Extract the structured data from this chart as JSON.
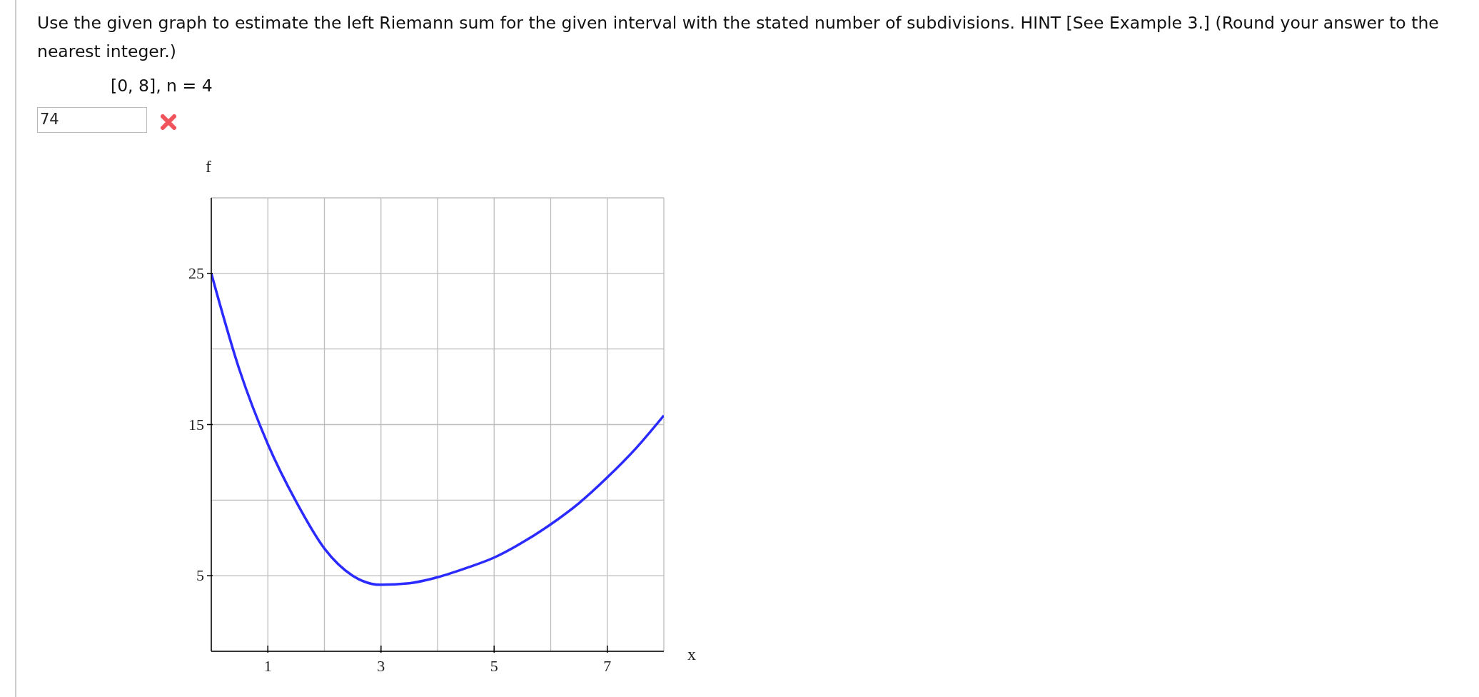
{
  "chart_data": {
    "type": "line",
    "title": "Use the given graph to estimate the left Riemann sum for the given interval with the stated number of subdivisions. HINT [See Example 3.] (Round your answer to the nearest integer.)",
    "subtitle": "[0, 8], n = 4",
    "annotations": [
      "74"
    ],
    "xlabel": "x",
    "ylabel": "f",
    "series": [
      {
        "color": "#2b2bff",
        "x": [
          0,
          0.5,
          1,
          1.5,
          2,
          2.5,
          3,
          3.5,
          4,
          4.5,
          5,
          5.5,
          6,
          6.5,
          7,
          7.5,
          8
        ],
        "values": [
          25,
          18.6,
          13.7,
          9.9,
          6.8,
          5,
          4.4,
          4.5,
          4.9,
          5.5,
          6.2,
          7.2,
          8.4,
          9.8,
          11.5,
          13.4,
          15.6
        ]
      }
    ],
    "xlim": [
      0,
      8
    ],
    "xticks": [
      {
        "value": 1,
        "label": "1"
      },
      {
        "value": 2,
        "label": null
      },
      {
        "value": 3,
        "label": "3"
      },
      {
        "value": 4,
        "label": null
      },
      {
        "value": 5,
        "label": "5"
      },
      {
        "value": 6,
        "label": null
      },
      {
        "value": 7,
        "label": "7"
      },
      {
        "value": 8,
        "label": null
      }
    ],
    "ylim": [
      0,
      30
    ],
    "yticks": [
      {
        "value": 5,
        "label": "5"
      },
      {
        "value": 10,
        "label": null
      },
      {
        "value": 15,
        "label": "15"
      },
      {
        "value": 20,
        "label": null
      },
      {
        "value": 25,
        "label": "25"
      },
      {
        "value": 30,
        "label": null
      }
    ],
    "grid": true,
    "marker": "none",
    "line_style": "solid"
  }
}
